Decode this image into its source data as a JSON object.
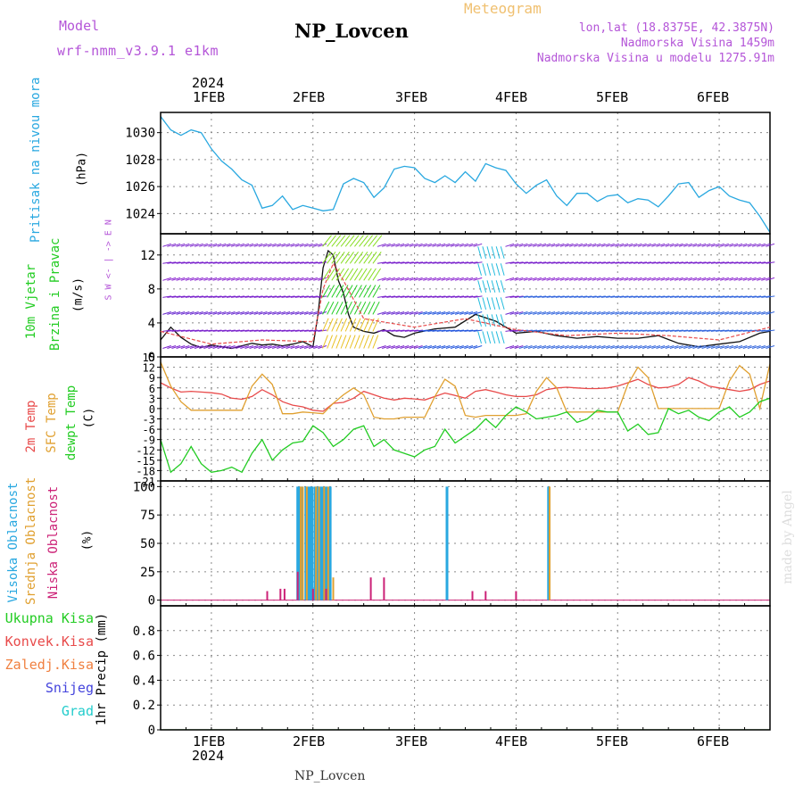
{
  "header": {
    "model_label": "Model",
    "model_name": "wrf-nmm_v3.9.1 e1km",
    "title": "NP_Lovcen",
    "meteogram_label": "Meteogram",
    "lonlat": "lon,lat (18.8375E, 42.3875N)",
    "elevation": "Nadmorska Visina 1459m",
    "model_elevation": "Nadmorska Visina u modelu 1275.91m",
    "footer_station": "NP_Lovcen",
    "watermark": "made by Angel"
  },
  "time_axis": {
    "year": "2024",
    "ticks": [
      "1FEB",
      "2FEB",
      "3FEB",
      "4FEB",
      "5FEB",
      "6FEB"
    ]
  },
  "colors": {
    "pressure": "#29a8e0",
    "temp2m": "#e84a4a",
    "sfc_temp": "#e0a030",
    "dewpoint": "#22cc22",
    "high_cloud": "#29a8e0",
    "mid_cloud": "#e0a030",
    "low_cloud": "#cc2277"
  },
  "panels": {
    "pressure": {
      "label": "Pritisak na nivou mora",
      "unit": "(hPa)"
    },
    "wind": {
      "label1": "10m Vjetar",
      "label2": "Brzina i Pravac",
      "unit": "(m/s)",
      "compass": "W <- | -> E",
      "compass_top": "N",
      "compass_bottom": "S"
    },
    "temperature": {
      "label1": "2m Temp",
      "label2": "SFC Temp",
      "label3": "dewpt Temp",
      "unit": "(C)"
    },
    "cloud": {
      "label1": "Visoka Oblacnost",
      "label2": "Srednja Oblacnost",
      "label3": "Niska Oblacnost",
      "unit": "(%)"
    },
    "precip": {
      "labels": [
        "Ukupna Kisa",
        "Konvek.Kisa",
        "Zaledj.Kisa",
        "Snijeg",
        "Grad"
      ],
      "unit": "1hr Precip (mm)"
    }
  },
  "chart_data": [
    {
      "type": "line",
      "panel": "pressure",
      "x_unit": "days since 1FEB 00UTC",
      "xlim": [
        -0.5,
        5.5
      ],
      "ylim": [
        1022.5,
        1031.5
      ],
      "yticks": [
        "1024",
        "1026",
        "1028",
        "1030"
      ],
      "series": [
        {
          "name": "Pritisak na nivou mora",
          "x": [
            -0.5,
            -0.4,
            -0.3,
            -0.2,
            -0.1,
            0,
            0.1,
            0.2,
            0.3,
            0.4,
            0.5,
            0.6,
            0.7,
            0.8,
            0.9,
            1.0,
            1.1,
            1.2,
            1.3,
            1.4,
            1.5,
            1.6,
            1.7,
            1.8,
            1.9,
            2.0,
            2.1,
            2.2,
            2.3,
            2.4,
            2.5,
            2.6,
            2.7,
            2.8,
            2.9,
            3.0,
            3.1,
            3.2,
            3.3,
            3.4,
            3.5,
            3.6,
            3.7,
            3.8,
            3.9,
            4.0,
            4.1,
            4.2,
            4.3,
            4.4,
            4.5,
            4.6,
            4.7,
            4.8,
            4.9,
            5.0,
            5.1,
            5.2,
            5.3,
            5.4,
            5.5
          ],
          "values": [
            1031.2,
            1030.2,
            1029.8,
            1030.2,
            1030.0,
            1028.8,
            1027.9,
            1027.3,
            1026.5,
            1026.1,
            1024.4,
            1024.6,
            1025.3,
            1024.3,
            1024.6,
            1024.4,
            1024.2,
            1024.3,
            1026.2,
            1026.6,
            1026.3,
            1025.2,
            1025.9,
            1027.3,
            1027.5,
            1027.4,
            1026.6,
            1026.3,
            1026.8,
            1026.3,
            1027.1,
            1026.4,
            1027.7,
            1027.4,
            1027.2,
            1026.2,
            1025.5,
            1026.1,
            1026.5,
            1025.3,
            1024.6,
            1025.5,
            1025.5,
            1024.9,
            1025.3,
            1025.4,
            1024.8,
            1025.1,
            1025.0,
            1024.5,
            1025.3,
            1026.2,
            1026.3,
            1025.2,
            1025.7,
            1026.0,
            1025.3,
            1025.0,
            1024.8,
            1023.8,
            1022.6
          ]
        }
      ]
    },
    {
      "type": "line",
      "panel": "wind",
      "x_unit": "days since 1FEB 00UTC",
      "xlim": [
        -0.5,
        5.5
      ],
      "ylim": [
        0,
        14.5
      ],
      "yticks": [
        "0",
        "4",
        "8",
        "12"
      ],
      "series": [
        {
          "name": "10m Vjetar",
          "x": [
            -0.5,
            -0.4,
            -0.3,
            -0.2,
            -0.1,
            0,
            0.1,
            0.2,
            0.3,
            0.4,
            0.5,
            0.6,
            0.7,
            0.8,
            0.9,
            1.0,
            1.05,
            1.1,
            1.15,
            1.2,
            1.25,
            1.3,
            1.35,
            1.4,
            1.5,
            1.6,
            1.7,
            1.8,
            1.9,
            2.0,
            2.2,
            2.4,
            2.6,
            2.8,
            3.0,
            3.2,
            3.4,
            3.6,
            3.8,
            4.0,
            4.2,
            4.4,
            4.6,
            4.8,
            5.0,
            5.2,
            5.4,
            5.5
          ],
          "values": [
            2.0,
            3.5,
            2.3,
            1.5,
            1.1,
            1.4,
            1.2,
            1.0,
            1.3,
            1.6,
            1.4,
            1.5,
            1.3,
            1.5,
            1.8,
            1.2,
            5.0,
            10.5,
            12.5,
            12.0,
            9.0,
            7.5,
            5.0,
            3.5,
            3.0,
            2.8,
            3.2,
            2.5,
            2.3,
            2.8,
            3.3,
            3.5,
            5.0,
            4.2,
            2.8,
            3.0,
            2.5,
            2.2,
            2.4,
            2.2,
            2.2,
            2.5,
            1.6,
            1.2,
            1.5,
            1.8,
            2.8,
            3.0
          ]
        }
      ]
    },
    {
      "type": "line",
      "panel": "temperature",
      "x_unit": "days since 1FEB 00UTC",
      "xlim": [
        -0.5,
        5.5
      ],
      "ylim": [
        -21,
        15
      ],
      "yticks": [
        "15",
        "12",
        "9",
        "6",
        "3",
        "0",
        "-3",
        "-6",
        "-9",
        "-12",
        "-15",
        "-18",
        "-21"
      ],
      "series": [
        {
          "name": "2m Temp",
          "x": [
            -0.5,
            -0.4,
            -0.3,
            -0.2,
            -0.1,
            0,
            0.1,
            0.2,
            0.3,
            0.4,
            0.5,
            0.6,
            0.7,
            0.8,
            0.9,
            1.0,
            1.1,
            1.2,
            1.3,
            1.4,
            1.5,
            1.6,
            1.7,
            1.8,
            1.9,
            2.0,
            2.1,
            2.2,
            2.3,
            2.4,
            2.5,
            2.6,
            2.7,
            2.8,
            2.9,
            3.0,
            3.1,
            3.2,
            3.3,
            3.4,
            3.5,
            3.6,
            3.7,
            3.8,
            3.9,
            4.0,
            4.1,
            4.2,
            4.3,
            4.4,
            4.5,
            4.6,
            4.7,
            4.8,
            4.9,
            5.0,
            5.1,
            5.2,
            5.3,
            5.4,
            5.5
          ],
          "values": [
            7.5,
            6.0,
            4.8,
            5.0,
            4.8,
            4.6,
            4.2,
            3.0,
            2.7,
            3.5,
            5.5,
            4.0,
            2.0,
            1.0,
            0.5,
            -0.5,
            -0.8,
            1.5,
            1.8,
            3.0,
            5.0,
            4.0,
            3.0,
            2.5,
            3.0,
            2.8,
            2.5,
            3.5,
            4.5,
            3.8,
            3.0,
            5.0,
            5.5,
            4.8,
            4.0,
            3.5,
            3.5,
            4.0,
            5.5,
            6.0,
            6.2,
            6.0,
            5.8,
            5.8,
            6.0,
            6.5,
            7.5,
            8.5,
            7.0,
            6.0,
            6.2,
            7.0,
            9.0,
            8.0,
            6.5,
            6.0,
            5.5,
            5.0,
            5.5,
            7.0,
            8.0
          ]
        },
        {
          "name": "SFC Temp",
          "x": [
            -0.5,
            -0.4,
            -0.3,
            -0.2,
            -0.1,
            0,
            0.1,
            0.2,
            0.3,
            0.4,
            0.5,
            0.6,
            0.7,
            0.8,
            0.9,
            1.0,
            1.1,
            1.2,
            1.3,
            1.4,
            1.5,
            1.6,
            1.7,
            1.8,
            1.9,
            2.0,
            2.1,
            2.2,
            2.3,
            2.4,
            2.5,
            2.6,
            2.7,
            2.8,
            2.9,
            3.0,
            3.1,
            3.2,
            3.3,
            3.4,
            3.5,
            3.6,
            3.7,
            3.8,
            3.9,
            4.0,
            4.1,
            4.2,
            4.3,
            4.4,
            4.5,
            4.6,
            4.7,
            4.8,
            4.9,
            5.0,
            5.1,
            5.2,
            5.3,
            5.4,
            5.5
          ],
          "values": [
            13.5,
            6.5,
            2.0,
            -0.5,
            -0.5,
            -0.5,
            -0.5,
            -0.5,
            -0.5,
            6.5,
            10.0,
            7.0,
            -1.5,
            -1.5,
            -1.0,
            -1.2,
            -1.5,
            1.5,
            4.0,
            6.0,
            4.0,
            -2.5,
            -3.0,
            -3.0,
            -2.5,
            -2.5,
            -2.5,
            3.5,
            8.5,
            6.5,
            -2.0,
            -2.5,
            -2.0,
            -2.0,
            -2.0,
            -2.0,
            -1.5,
            5.0,
            9.0,
            6.0,
            -1.0,
            -1.0,
            -1.0,
            -1.0,
            -1.0,
            -1.0,
            7.0,
            12.0,
            9.0,
            0.0,
            0.0,
            0.0,
            0.0,
            0.0,
            0.0,
            0.0,
            8.0,
            12.5,
            10.0,
            0.0,
            13.0
          ]
        },
        {
          "name": "dewpt Temp",
          "x": [
            -0.5,
            -0.4,
            -0.3,
            -0.2,
            -0.1,
            0,
            0.1,
            0.2,
            0.3,
            0.4,
            0.5,
            0.6,
            0.7,
            0.8,
            0.9,
            1.0,
            1.1,
            1.2,
            1.3,
            1.4,
            1.5,
            1.6,
            1.7,
            1.8,
            1.9,
            2.0,
            2.1,
            2.2,
            2.3,
            2.4,
            2.5,
            2.6,
            2.7,
            2.8,
            2.9,
            3.0,
            3.1,
            3.2,
            3.3,
            3.4,
            3.5,
            3.6,
            3.7,
            3.8,
            3.9,
            4.0,
            4.1,
            4.2,
            4.3,
            4.4,
            4.5,
            4.6,
            4.7,
            4.8,
            4.9,
            5.0,
            5.1,
            5.2,
            5.3,
            5.4,
            5.5
          ],
          "values": [
            -9.0,
            -18.5,
            -16.0,
            -11.0,
            -16.0,
            -18.5,
            -18.0,
            -17.0,
            -18.5,
            -13.0,
            -9.0,
            -15.0,
            -12.0,
            -10.0,
            -9.5,
            -5.0,
            -7.0,
            -11.0,
            -9.0,
            -6.0,
            -5.0,
            -11.0,
            -9.0,
            -12.0,
            -13.0,
            -14.0,
            -12.0,
            -11.0,
            -6.0,
            -10.0,
            -8.0,
            -6.0,
            -3.0,
            -5.5,
            -2.0,
            0.5,
            -1.0,
            -3.0,
            -2.5,
            -2.0,
            -1.0,
            -4.0,
            -3.0,
            -0.5,
            -1.0,
            -1.0,
            -6.5,
            -4.5,
            -7.5,
            -7.0,
            0.0,
            -1.5,
            -0.5,
            -2.5,
            -3.5,
            -1.0,
            0.5,
            -2.5,
            -1.0,
            2.0,
            3.0
          ]
        }
      ]
    },
    {
      "type": "bar",
      "panel": "cloud",
      "x_unit": "days since 1FEB 00UTC",
      "xlim": [
        -0.5,
        5.5
      ],
      "ylim": [
        -5,
        105
      ],
      "yticks": [
        "0",
        "25",
        "50",
        "75",
        "100"
      ],
      "series": [
        {
          "name": "Visoka Oblacnost",
          "x": [
            0.85,
            0.87,
            0.89,
            0.93,
            0.95,
            0.97,
            0.99,
            1.02,
            1.04,
            1.07,
            1.09,
            1.12,
            1.14,
            1.17,
            2.32,
            3.32
          ],
          "values": [
            100,
            100,
            100,
            100,
            100,
            100,
            100,
            100,
            100,
            100,
            100,
            100,
            100,
            100,
            100,
            100
          ]
        },
        {
          "name": "Srednja Oblacnost",
          "x": [
            0.88,
            0.9,
            0.94,
            1.03,
            1.06,
            1.11,
            1.15,
            1.2,
            3.33
          ],
          "values": [
            100,
            100,
            100,
            100,
            100,
            100,
            100,
            20,
            100
          ]
        },
        {
          "name": "Niska Oblacnost",
          "x": [
            0.55,
            0.68,
            0.72,
            0.85,
            1.0,
            1.13,
            1.57,
            1.7,
            2.57,
            2.7,
            3.0
          ],
          "values": [
            8,
            10,
            10,
            25,
            10,
            10,
            20,
            20,
            8,
            8,
            8
          ]
        }
      ]
    },
    {
      "type": "line",
      "panel": "precip",
      "x_unit": "days since 1FEB 00UTC",
      "xlim": [
        -0.5,
        5.5
      ],
      "ylim": [
        0,
        1.0
      ],
      "yticks": [
        "0",
        "0.2",
        "0.4",
        "0.6",
        "0.8"
      ],
      "series": [
        {
          "name": "Ukupna Kisa",
          "x": [
            -0.5,
            5.5
          ],
          "values": [
            0,
            0
          ]
        }
      ]
    }
  ]
}
